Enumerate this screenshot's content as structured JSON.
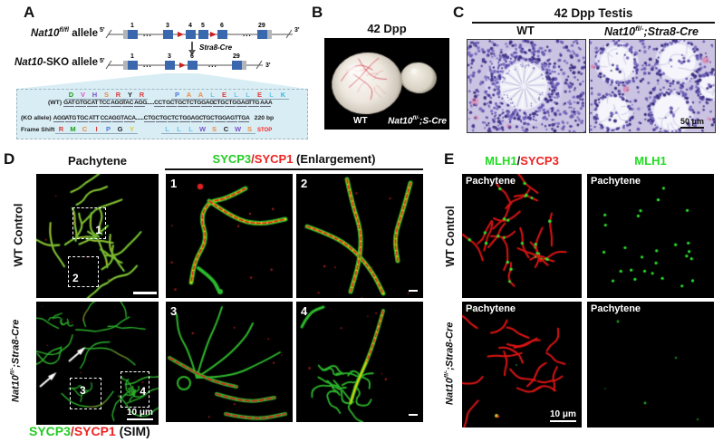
{
  "panelA": {
    "label": "A",
    "allele1": {
      "name": "Nat10",
      "sup": "fl/fl",
      "tail": " allele"
    },
    "allele2": {
      "name": "Nat10",
      "tail": "-SKO allele"
    },
    "five": "5'",
    "three": "3'",
    "dots": "...",
    "cre": "Stra8-Cre",
    "exons_top": [
      "1",
      "3",
      "4",
      "5",
      "6",
      "29"
    ],
    "exons_bottom": [
      "1",
      "3",
      "6",
      "29"
    ],
    "wt_prefix": "(WT)",
    "wt_seq": "GATGTGCATTCCAGGTACAGG......CCTGCTGCTCTGGAGCTGCTGGAGTTGAAA",
    "ko_prefix": "(KO allele)",
    "ko_seq": "AGGATGTGCATTCCAGGTACA......CTGCTGCTCTGGAGCTGCTGGAGTTGA",
    "bp": "220 bp",
    "fs_prefix": "Frame Shift",
    "wt_aa1": [
      {
        "ch": "D",
        "c": "#18a018"
      },
      {
        "ch": "V",
        "c": "#e24fc8"
      },
      {
        "ch": "H",
        "c": "#7b52c8"
      },
      {
        "ch": "S",
        "c": "#f08a3c"
      },
      {
        "ch": "R",
        "c": "#e03a3a"
      },
      {
        "ch": "Y",
        "c": "#222222"
      },
      {
        "ch": "R",
        "c": "#e03a3a"
      }
    ],
    "wt_aa2": [
      {
        "ch": "P",
        "c": "#4a78d8"
      },
      {
        "ch": "A",
        "c": "#f08a3c"
      },
      {
        "ch": "A",
        "c": "#f08a3c"
      },
      {
        "ch": "L",
        "c": "#6ec6f0"
      },
      {
        "ch": "E",
        "c": "#e03a3a"
      },
      {
        "ch": "L",
        "c": "#6ec6f0"
      },
      {
        "ch": "L",
        "c": "#6ec6f0"
      },
      {
        "ch": "E",
        "c": "#e03a3a"
      },
      {
        "ch": "L",
        "c": "#6ec6f0"
      },
      {
        "ch": "K",
        "c": "#30b8e0"
      }
    ],
    "fs_aa1": [
      {
        "ch": "R",
        "c": "#e03a3a"
      },
      {
        "ch": "M",
        "c": "#18a018"
      },
      {
        "ch": "C",
        "c": "#f08a3c"
      },
      {
        "ch": "I",
        "c": "#d84040"
      },
      {
        "ch": "P",
        "c": "#4a78d8"
      },
      {
        "ch": "G",
        "c": "#222222"
      },
      {
        "ch": "Y",
        "c": "#e0cc30"
      }
    ],
    "fs_aa2": [
      {
        "ch": "L",
        "c": "#6ec6f0"
      },
      {
        "ch": "L",
        "c": "#6ec6f0"
      },
      {
        "ch": "L",
        "c": "#6ec6f0"
      },
      {
        "ch": "W",
        "c": "#7b52c8"
      },
      {
        "ch": "S",
        "c": "#f08a3c"
      },
      {
        "ch": "C",
        "c": "#222222"
      },
      {
        "ch": "W",
        "c": "#7b52c8"
      },
      {
        "ch": "S",
        "c": "#f08a3c"
      }
    ],
    "stop": {
      "ch": "STOP",
      "c": "#ff2222"
    }
  },
  "panelB": {
    "label": "B",
    "title": "42 Dpp",
    "wt": "WT",
    "geno": {
      "name": "Nat10",
      "sup": "fl/-",
      "tail": ";S-Cre"
    }
  },
  "panelC": {
    "label": "C",
    "title": "42 Dpp Testis",
    "wt": "WT",
    "geno": {
      "name": "Nat10",
      "sup": "fl/-",
      "tail": ";Stra8-Cre"
    },
    "scale": "50 μm"
  },
  "panelD": {
    "label": "D",
    "header": "Pachytene",
    "row1": "WT Control",
    "row2": {
      "name": "Nat10",
      "sup": "fl/-",
      "tail": ";Stra8-Cre"
    },
    "roi": [
      "1",
      "2",
      "3",
      "4"
    ],
    "scale": "10 μm",
    "caption": {
      "g": "SYCP3",
      "slash": "/",
      "r": "SYCP1",
      "tail": " (SIM)"
    },
    "enl_header": {
      "g": "SYCP3",
      "slash": "/",
      "r": "SYCP1",
      "tail": " (Enlargement)"
    },
    "enl_nums": [
      "1",
      "2",
      "3",
      "4"
    ]
  },
  "panelE": {
    "label": "E",
    "hdr1": {
      "g": "MLH1",
      "slash": "/",
      "r": "SYCP3"
    },
    "hdr2": "MLH1",
    "row1": "WT Control",
    "row2": {
      "name": "Nat10",
      "sup": "fl/-",
      "tail": ";Stra8-Cre"
    },
    "stage": "Pachytene",
    "scale": "10 μm"
  },
  "colors": {
    "green_label": "#22cc22",
    "red_label": "#ee2222",
    "exon_blue": "#3a68ae",
    "utr_gray": "#b2b5ba",
    "loxp_red": "#cc2020",
    "seq_bg": "#d9edf5"
  }
}
